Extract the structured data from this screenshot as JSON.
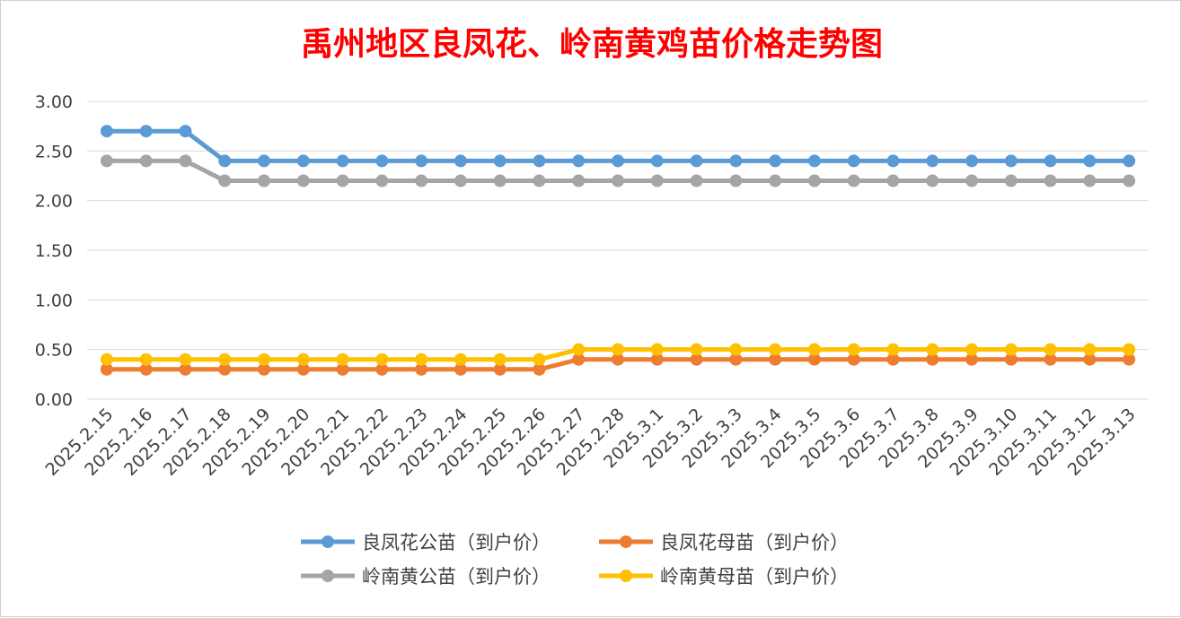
{
  "chart_data": {
    "type": "line",
    "title": "禹州地区良凤花、岭南黄鸡苗价格走势图",
    "xlabel": "",
    "ylabel": "",
    "ylim": [
      0,
      3
    ],
    "yticks": [
      "0.00",
      "0.50",
      "1.00",
      "1.50",
      "2.00",
      "2.50",
      "3.00"
    ],
    "grid": true,
    "legend_position": "bottom",
    "categories": [
      "2025.2.15",
      "2025.2.16",
      "2025.2.17",
      "2025.2.18",
      "2025.2.19",
      "2025.2.20",
      "2025.2.21",
      "2025.2.22",
      "2025.2.23",
      "2025.2.24",
      "2025.2.25",
      "2025.2.26",
      "2025.2.27",
      "2025.2.28",
      "2025.3.1",
      "2025.3.2",
      "2025.3.3",
      "2025.3.4",
      "2025.3.5",
      "2025.3.6",
      "2025.3.7",
      "2025.3.8",
      "2025.3.9",
      "2025.3.10",
      "2025.3.11",
      "2025.3.12",
      "2025.3.13"
    ],
    "series": [
      {
        "name": "良凤花公苗（到户价）",
        "color": "#5b9bd5",
        "values": [
          2.7,
          2.7,
          2.7,
          2.4,
          2.4,
          2.4,
          2.4,
          2.4,
          2.4,
          2.4,
          2.4,
          2.4,
          2.4,
          2.4,
          2.4,
          2.4,
          2.4,
          2.4,
          2.4,
          2.4,
          2.4,
          2.4,
          2.4,
          2.4,
          2.4,
          2.4,
          2.4
        ]
      },
      {
        "name": "良凤花母苗（到户价）",
        "color": "#ed7d31",
        "values": [
          0.3,
          0.3,
          0.3,
          0.3,
          0.3,
          0.3,
          0.3,
          0.3,
          0.3,
          0.3,
          0.3,
          0.3,
          0.4,
          0.4,
          0.4,
          0.4,
          0.4,
          0.4,
          0.4,
          0.4,
          0.4,
          0.4,
          0.4,
          0.4,
          0.4,
          0.4,
          0.4
        ]
      },
      {
        "name": "岭南黄公苗（到户价）",
        "color": "#a5a5a5",
        "values": [
          2.4,
          2.4,
          2.4,
          2.2,
          2.2,
          2.2,
          2.2,
          2.2,
          2.2,
          2.2,
          2.2,
          2.2,
          2.2,
          2.2,
          2.2,
          2.2,
          2.2,
          2.2,
          2.2,
          2.2,
          2.2,
          2.2,
          2.2,
          2.2,
          2.2,
          2.2,
          2.2
        ]
      },
      {
        "name": "岭南黄母苗（到户价）",
        "color": "#ffc000",
        "values": [
          0.4,
          0.4,
          0.4,
          0.4,
          0.4,
          0.4,
          0.4,
          0.4,
          0.4,
          0.4,
          0.4,
          0.4,
          0.5,
          0.5,
          0.5,
          0.5,
          0.5,
          0.5,
          0.5,
          0.5,
          0.5,
          0.5,
          0.5,
          0.5,
          0.5,
          0.5,
          0.5
        ]
      }
    ]
  }
}
